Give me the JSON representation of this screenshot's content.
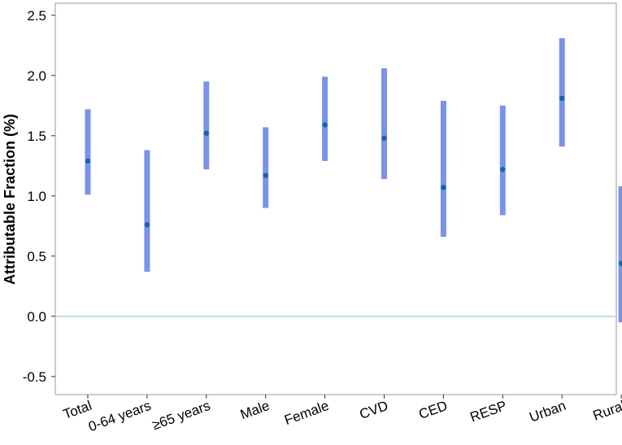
{
  "chart_data": {
    "type": "errorbar",
    "title": "",
    "xlabel": "",
    "ylabel": "Attributable Fraction (%)",
    "ylim": [
      -0.65,
      2.6
    ],
    "yticks": [
      "-0.5",
      "0.0",
      "0.5",
      "1.0",
      "1.5",
      "2.0",
      "2.5"
    ],
    "categories": [
      "Total",
      "0-64 years",
      "≥65 years",
      "Male",
      "Female",
      "CVD",
      "CED",
      "RESP",
      "Urban",
      "Rural"
    ],
    "estimates": [
      1.29,
      0.76,
      1.52,
      1.17,
      1.59,
      1.48,
      1.07,
      1.22,
      1.81,
      0.44
    ],
    "lower": [
      1.01,
      0.37,
      1.22,
      0.9,
      1.29,
      1.14,
      0.66,
      0.84,
      1.41,
      -0.05
    ],
    "upper": [
      1.72,
      1.38,
      1.95,
      1.57,
      1.99,
      2.06,
      1.79,
      1.75,
      2.31,
      1.08
    ],
    "reference_line": 0.0,
    "colors": {
      "bar": "#7b93e6",
      "point": "#1763ad",
      "reference": "#9fd3e0",
      "frame": "#9a9a9a"
    },
    "grid": false,
    "legend": "none"
  }
}
